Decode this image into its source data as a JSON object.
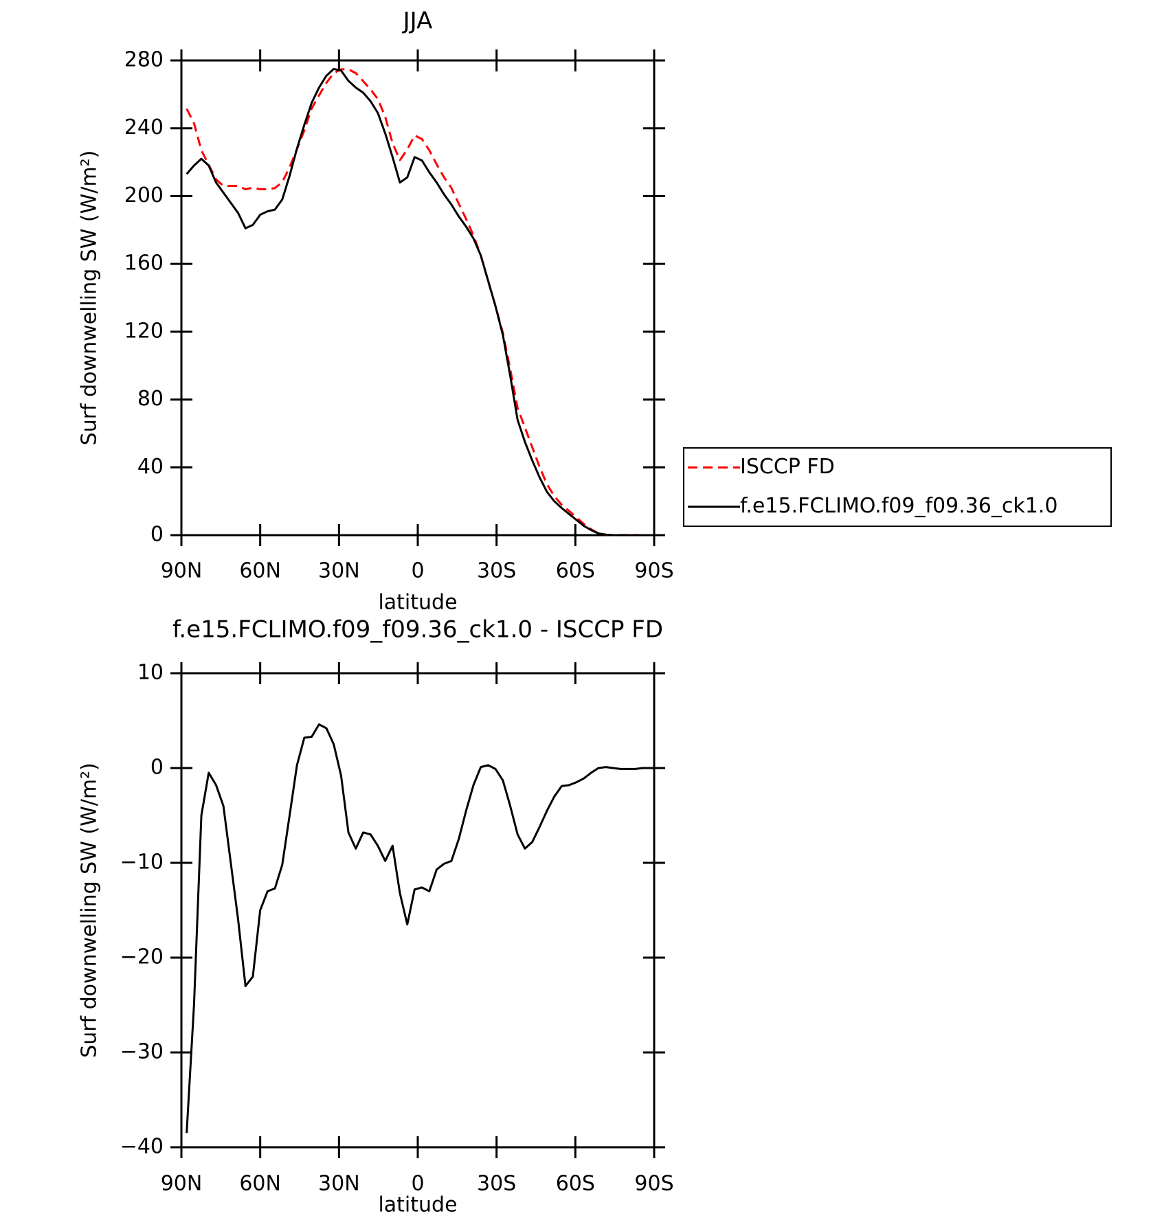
{
  "chart_data": [
    {
      "type": "line",
      "title": "JJA",
      "xlabel": "latitude",
      "ylabel": "Surf downwelling SW (W/m²)",
      "x": [
        88,
        85.2,
        82.4,
        79.6,
        76.8,
        74,
        71.2,
        68.4,
        65.6,
        62.8,
        60,
        57.2,
        54.4,
        51.6,
        48.8,
        46,
        43.2,
        40.4,
        37.6,
        34.8,
        32,
        29.2,
        26.4,
        23.6,
        20.8,
        18,
        15.2,
        12.4,
        9.6,
        6.8,
        4,
        1.2,
        -1.6,
        -4.4,
        -7.2,
        -10,
        -12.8,
        -15.6,
        -18.4,
        -21.2,
        -24,
        -26.8,
        -29.6,
        -32.4,
        -35.2,
        -38,
        -40.8,
        -43.6,
        -46.4,
        -49.2,
        -52,
        -54.8,
        -57.6,
        -60.4,
        -63.2,
        -66,
        -68.8,
        -71.6,
        -74.4,
        -77.2,
        -80,
        -82.8,
        -85.6,
        -88.4
      ],
      "xlim": [
        90,
        -90
      ],
      "xticks": [
        {
          "value": 90,
          "label": "90N"
        },
        {
          "value": 60,
          "label": "60N"
        },
        {
          "value": 30,
          "label": "30N"
        },
        0,
        {
          "value": -30,
          "label": "30S"
        },
        {
          "value": -60,
          "label": "60S"
        },
        {
          "value": -90,
          "label": "90S"
        }
      ],
      "ylim": [
        0,
        280
      ],
      "yticks": [
        0,
        40,
        80,
        120,
        160,
        200,
        240,
        280
      ],
      "legend": "right",
      "series": [
        {
          "name": "ISCCP FD",
          "color": "#ff0000",
          "linestyle": "dashed",
          "values": [
            251.5,
            243,
            227,
            218.5,
            209.8,
            206,
            206,
            206,
            204,
            205,
            204,
            204,
            204.7,
            208.2,
            217,
            227.7,
            238.8,
            251.7,
            259.4,
            266.8,
            272.5,
            274.8,
            274.8,
            272.5,
            267.8,
            263,
            257.2,
            246.8,
            231.2,
            221.2,
            227.5,
            235.8,
            233.6,
            227,
            218.7,
            211.1,
            204.8,
            195.5,
            186.5,
            176.8,
            164.9,
            149.7,
            135.1,
            119.3,
            98,
            75,
            63.5,
            51.8,
            40.2,
            30,
            23,
            17.9,
            14.3,
            10.5,
            6.6,
            3.5,
            1,
            0.2,
            0,
            0.1,
            0.1,
            0.1,
            0,
            0
          ]
        },
        {
          "name": "f.e15.FCLIMO.f09_f09.36_ck1.0",
          "color": "#000000",
          "linestyle": "solid",
          "values": [
            213,
            218,
            222,
            218,
            208,
            202,
            196,
            190,
            181,
            183,
            189,
            191,
            192,
            198,
            212,
            228,
            242,
            255,
            264,
            271,
            275,
            274,
            268,
            264,
            261,
            256,
            249,
            237,
            223,
            208,
            211,
            223,
            221,
            214,
            208,
            201,
            195,
            188,
            182,
            175,
            165,
            150,
            135,
            118,
            94,
            68,
            55,
            44,
            34,
            25.5,
            20,
            16,
            12.5,
            9,
            5.5,
            3,
            1,
            0.3,
            0,
            0,
            0,
            0,
            0,
            0
          ]
        }
      ]
    },
    {
      "type": "line",
      "title": "f.e15.FCLIMO.f09_f09.36_ck1.0 - ISCCP FD",
      "xlabel": "latitude",
      "ylabel": "Surf downwelling SW (W/m²)",
      "x": [
        88,
        85.2,
        82.4,
        79.6,
        76.8,
        74,
        71.2,
        68.4,
        65.6,
        62.8,
        60,
        57.2,
        54.4,
        51.6,
        48.8,
        46,
        43.2,
        40.4,
        37.6,
        34.8,
        32,
        29.2,
        26.4,
        23.6,
        20.8,
        18,
        15.2,
        12.4,
        9.6,
        6.8,
        4,
        1.2,
        -1.6,
        -4.4,
        -7.2,
        -10,
        -12.8,
        -15.6,
        -18.4,
        -21.2,
        -24,
        -26.8,
        -29.6,
        -32.4,
        -35.2,
        -38,
        -40.8,
        -43.6,
        -46.4,
        -49.2,
        -52,
        -54.8,
        -57.6,
        -60.4,
        -63.2,
        -66,
        -68.8,
        -71.6,
        -74.4,
        -77.2,
        -80,
        -82.8,
        -85.6,
        -88.4
      ],
      "xlim": [
        90,
        -90
      ],
      "xticks": [
        {
          "value": 90,
          "label": "90N"
        },
        {
          "value": 60,
          "label": "60N"
        },
        {
          "value": 30,
          "label": "30N"
        },
        0,
        {
          "value": -30,
          "label": "30S"
        },
        {
          "value": -60,
          "label": "60S"
        },
        {
          "value": -90,
          "label": "90S"
        }
      ],
      "ylim": [
        -40,
        10
      ],
      "yticks": [
        {
          "value": -40,
          "label": "−40"
        },
        {
          "value": -30,
          "label": "−30"
        },
        {
          "value": -20,
          "label": "−20"
        },
        {
          "value": -10,
          "label": "−10"
        },
        0,
        10
      ],
      "series": [
        {
          "color": "#000000",
          "linestyle": "solid",
          "values": [
            -38.5,
            -25,
            -5,
            -0.5,
            -1.8,
            -4,
            -10,
            -16,
            -23,
            -22,
            -15,
            -13,
            -12.7,
            -10.2,
            -5,
            0.3,
            3.2,
            3.3,
            4.6,
            4.2,
            2.5,
            -0.8,
            -6.8,
            -8.5,
            -6.8,
            -7,
            -8.2,
            -9.8,
            -8.2,
            -13.2,
            -16.5,
            -12.8,
            -12.6,
            -13,
            -10.7,
            -10.1,
            -9.8,
            -7.5,
            -4.5,
            -1.8,
            0.1,
            0.3,
            -0.1,
            -1.3,
            -4,
            -7,
            -8.5,
            -7.8,
            -6.2,
            -4.5,
            -3,
            -1.9,
            -1.8,
            -1.5,
            -1.1,
            -0.5,
            0,
            0.1,
            0,
            -0.1,
            -0.1,
            -0.1,
            0,
            0
          ]
        }
      ]
    }
  ]
}
